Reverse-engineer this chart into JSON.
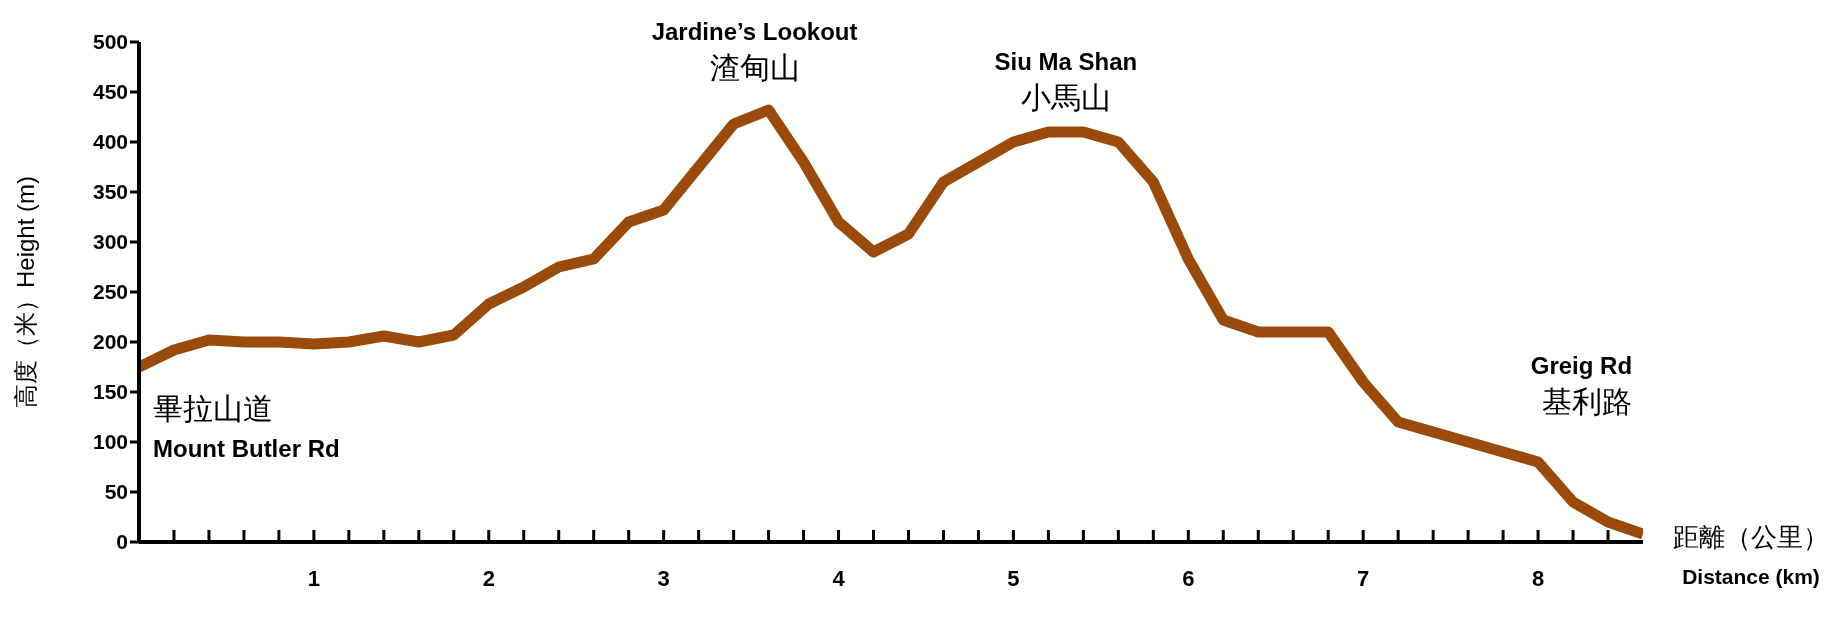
{
  "chart_data": {
    "type": "line",
    "xlabel": "距離（公里）\nDistance (km)",
    "ylabel": "高度（米）Height (m)",
    "x": [
      0,
      0.2,
      0.4,
      0.6,
      0.8,
      1.0,
      1.2,
      1.4,
      1.6,
      1.8,
      2.0,
      2.2,
      2.4,
      2.6,
      2.8,
      3.0,
      3.2,
      3.4,
      3.6,
      3.8,
      4.0,
      4.2,
      4.4,
      4.6,
      4.8,
      5.0,
      5.2,
      5.4,
      5.6,
      5.8,
      6.0,
      6.2,
      6.4,
      6.6,
      6.8,
      7.0,
      7.2,
      7.4,
      7.6,
      7.8,
      8.0,
      8.2,
      8.4,
      8.6
    ],
    "series": [
      {
        "color": "#9a4a0a",
        "values": [
          175,
          192,
          202,
          200,
          200,
          198,
          200,
          206,
          200,
          207,
          238,
          255,
          275,
          283,
          320,
          332,
          375,
          418,
          432,
          380,
          320,
          290,
          308,
          360,
          380,
          400,
          410,
          410,
          400,
          360,
          283,
          222,
          210,
          210,
          210,
          160,
          120,
          110,
          100,
          90,
          80,
          40,
          20,
          8
        ]
      }
    ],
    "xlim": [
      0,
      8.6
    ],
    "xticks": [
      {
        "value": 0.2,
        "label": null
      },
      {
        "value": 0.4,
        "label": null
      },
      {
        "value": 0.6,
        "label": null
      },
      {
        "value": 0.8,
        "label": null
      },
      1,
      {
        "value": 1.2,
        "label": null
      },
      {
        "value": 1.4,
        "label": null
      },
      {
        "value": 1.6,
        "label": null
      },
      {
        "value": 1.8,
        "label": null
      },
      2,
      {
        "value": 2.2,
        "label": null
      },
      {
        "value": 2.4,
        "label": null
      },
      {
        "value": 2.6,
        "label": null
      },
      {
        "value": 2.8,
        "label": null
      },
      3,
      {
        "value": 3.2,
        "label": null
      },
      {
        "value": 3.4,
        "label": null
      },
      {
        "value": 3.6,
        "label": null
      },
      {
        "value": 3.8,
        "label": null
      },
      4,
      {
        "value": 4.2,
        "label": null
      },
      {
        "value": 4.4,
        "label": null
      },
      {
        "value": 4.6,
        "label": null
      },
      {
        "value": 4.8,
        "label": null
      },
      5,
      {
        "value": 5.2,
        "label": null
      },
      {
        "value": 5.4,
        "label": null
      },
      {
        "value": 5.6,
        "label": null
      },
      {
        "value": 5.8,
        "label": null
      },
      6,
      {
        "value": 6.2,
        "label": null
      },
      {
        "value": 6.4,
        "label": null
      },
      {
        "value": 6.6,
        "label": null
      },
      {
        "value": 6.8,
        "label": null
      },
      7,
      {
        "value": 7.2,
        "label": null
      },
      {
        "value": 7.4,
        "label": null
      },
      {
        "value": 7.6,
        "label": null
      },
      {
        "value": 7.8,
        "label": null
      },
      8,
      {
        "value": 8.2,
        "label": null
      },
      {
        "value": 8.4,
        "label": null
      }
    ],
    "ylim": [
      0,
      500
    ],
    "yticks": [
      0,
      50,
      100,
      150,
      200,
      250,
      300,
      350,
      400,
      450,
      500
    ],
    "grid": false,
    "legend": false,
    "marker": "none",
    "line_style": "solid",
    "annotations": [
      {
        "text": "畢拉山道\nMount Butler Rd",
        "x": 0,
        "y": 175
      },
      {
        "text": "Jardine’s Lookout\n渣甸山",
        "x": 3.6,
        "y": 432
      },
      {
        "text": "Siu Ma Shan\n小馬山",
        "x": 5.3,
        "y": 410
      },
      {
        "text": "Greig Rd\n基利路",
        "x": 8.0,
        "y": 80
      }
    ]
  }
}
